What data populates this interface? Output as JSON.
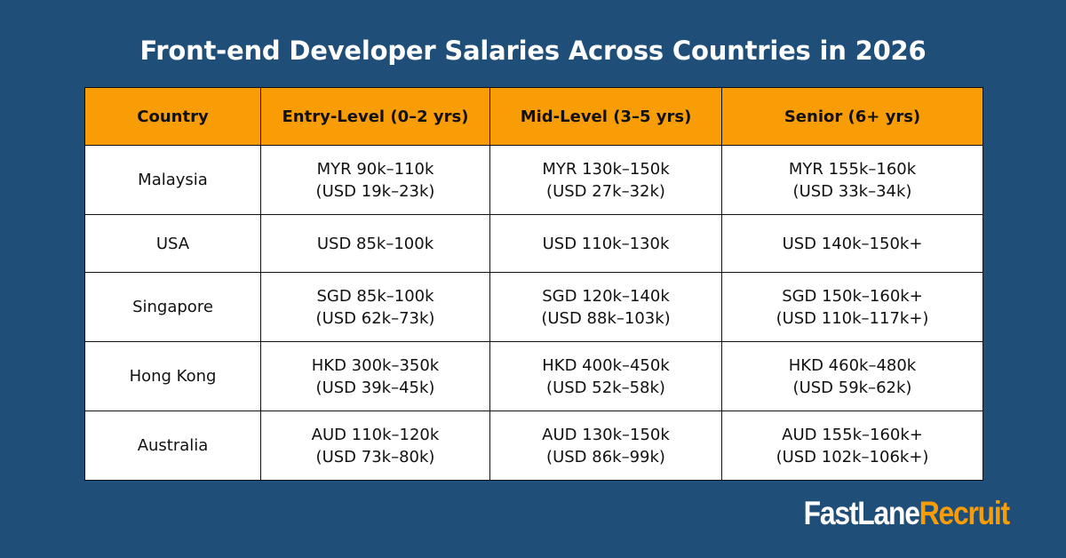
{
  "title": "Front-end Developer Salaries Across Countries in 2026",
  "table": {
    "headers": [
      "Country",
      "Entry-Level (0–2 yrs)",
      "Mid-Level (3–5 yrs)",
      "Senior (6+ yrs)"
    ],
    "rows": [
      {
        "country": "Malaysia",
        "entry": [
          "MYR 90k–110k",
          "(USD 19k–23k)"
        ],
        "mid": [
          "MYR 130k–150k",
          "(USD 27k–32k)"
        ],
        "senior": [
          "MYR 155k–160k",
          "(USD 33k–34k)"
        ]
      },
      {
        "country": "USA",
        "entry": [
          "USD 85k–100k"
        ],
        "mid": [
          "USD 110k–130k"
        ],
        "senior": [
          "USD 140k–150k+"
        ]
      },
      {
        "country": "Singapore",
        "entry": [
          "SGD 85k–100k",
          "(USD 62k–73k)"
        ],
        "mid": [
          "SGD 120k–140k",
          "(USD 88k–103k)"
        ],
        "senior": [
          "SGD 150k–160k+",
          "(USD 110k–117k+)"
        ]
      },
      {
        "country": "Hong Kong",
        "entry": [
          "HKD 300k–350k",
          "(USD 39k–45k)"
        ],
        "mid": [
          "HKD 400k–450k",
          "(USD 52k–58k)"
        ],
        "senior": [
          "HKD 460k–480k",
          "(USD 59k–62k)"
        ]
      },
      {
        "country": "Australia",
        "entry": [
          "AUD 110k–120k",
          "(USD 73k–80k)"
        ],
        "mid": [
          "AUD 130k–150k",
          "(USD 86k–99k)"
        ],
        "senior": [
          "AUD 155k–160k+",
          "(USD 102k–106k+)"
        ]
      }
    ]
  },
  "logo": {
    "part1": "FastLane",
    "part2": "Recruit"
  },
  "colors": {
    "background": "#1f4e79",
    "header": "#f99d07",
    "accent": "#f99d07"
  }
}
